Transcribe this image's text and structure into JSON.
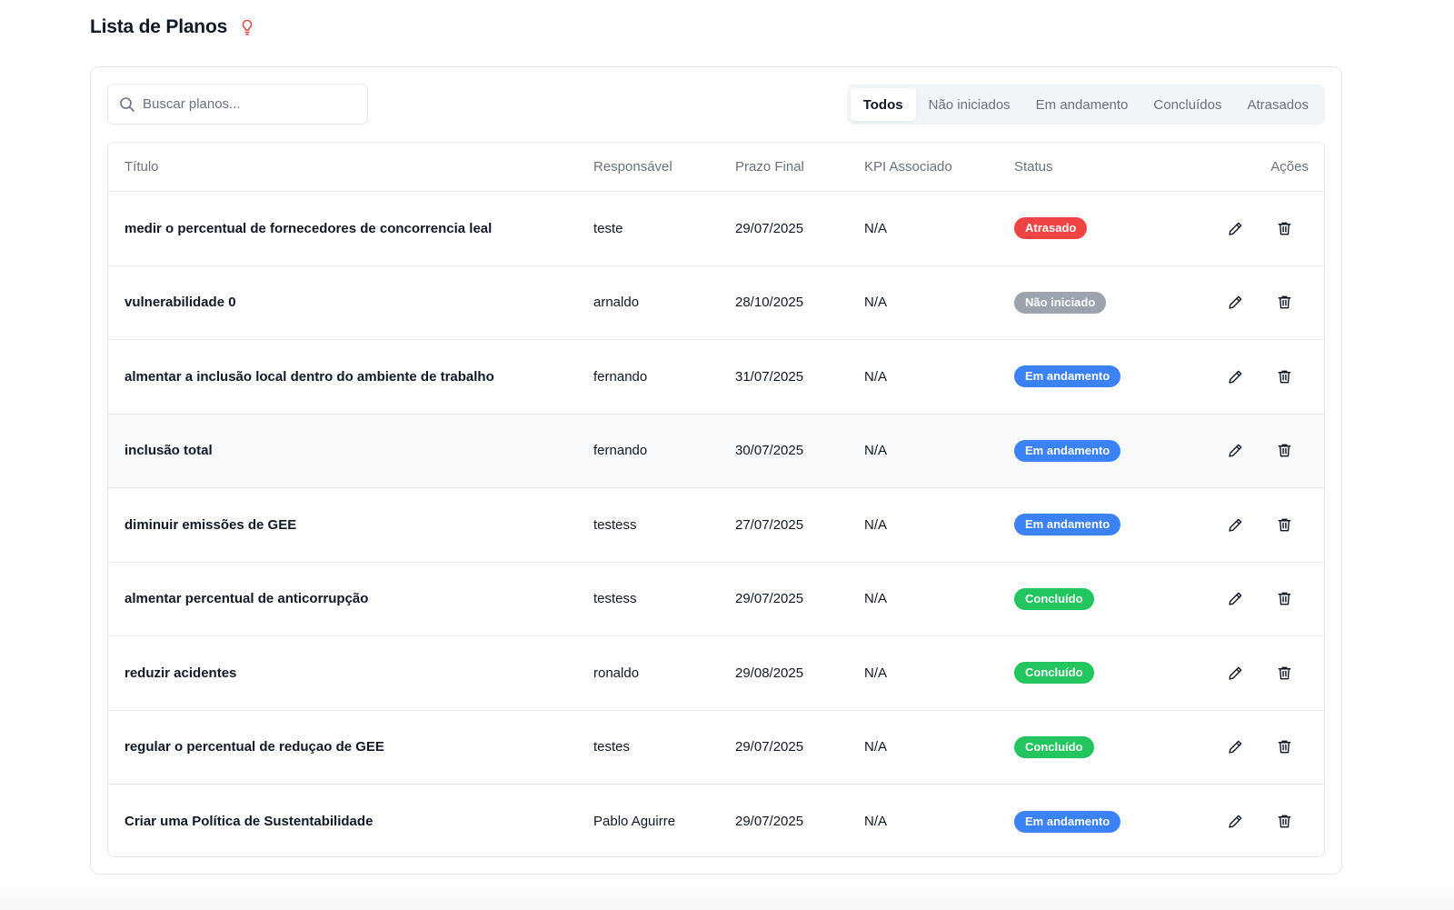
{
  "header": {
    "title": "Lista de Planos"
  },
  "search": {
    "placeholder": "Buscar planos...",
    "value": ""
  },
  "tabs": [
    {
      "label": "Todos",
      "active": true
    },
    {
      "label": "Não iniciados",
      "active": false
    },
    {
      "label": "Em andamento",
      "active": false
    },
    {
      "label": "Concluídos",
      "active": false
    },
    {
      "label": "Atrasados",
      "active": false
    }
  ],
  "table": {
    "columns": {
      "title": "Título",
      "responsible": "Responsável",
      "deadline": "Prazo Final",
      "kpi": "KPI Associado",
      "status": "Status",
      "actions": "Ações"
    },
    "rows": [
      {
        "title": "medir o percentual de fornecedores de concorrencia leal",
        "responsible": "teste",
        "deadline": "29/07/2025",
        "kpi": "N/A",
        "status": "Atrasado"
      },
      {
        "title": "vulnerabilidade 0",
        "responsible": "arnaldo",
        "deadline": "28/10/2025",
        "kpi": "N/A",
        "status": "Não iniciado"
      },
      {
        "title": "almentar a inclusão local dentro do ambiente de trabalho",
        "responsible": "fernando",
        "deadline": "31/07/2025",
        "kpi": "N/A",
        "status": "Em andamento"
      },
      {
        "title": "inclusão total",
        "responsible": "fernando",
        "deadline": "30/07/2025",
        "kpi": "N/A",
        "status": "Em andamento"
      },
      {
        "title": "diminuir emissões de GEE",
        "responsible": "testess",
        "deadline": "27/07/2025",
        "kpi": "N/A",
        "status": "Em andamento"
      },
      {
        "title": "almentar percentual de anticorrupção",
        "responsible": "testess",
        "deadline": "29/07/2025",
        "kpi": "N/A",
        "status": "Concluído"
      },
      {
        "title": "reduzir acidentes",
        "responsible": "ronaldo",
        "deadline": "29/08/2025",
        "kpi": "N/A",
        "status": "Concluído"
      },
      {
        "title": "regular o percentual de reduçao de GEE",
        "responsible": "testes",
        "deadline": "29/07/2025",
        "kpi": "N/A",
        "status": "Concluído"
      },
      {
        "title": "Criar uma Política de Sustentabilidade",
        "responsible": "Pablo Aguirre",
        "deadline": "29/07/2025",
        "kpi": "N/A",
        "status": "Em andamento"
      }
    ]
  },
  "status_colors": {
    "Atrasado": "#ef4444",
    "Não iniciado": "#9ca3af",
    "Em andamento": "#3b82f6",
    "Concluído": "#22c55e"
  },
  "icons": {
    "header": "lightbulb-icon",
    "search": "search-icon",
    "edit": "pencil-icon",
    "delete": "trash-icon"
  }
}
